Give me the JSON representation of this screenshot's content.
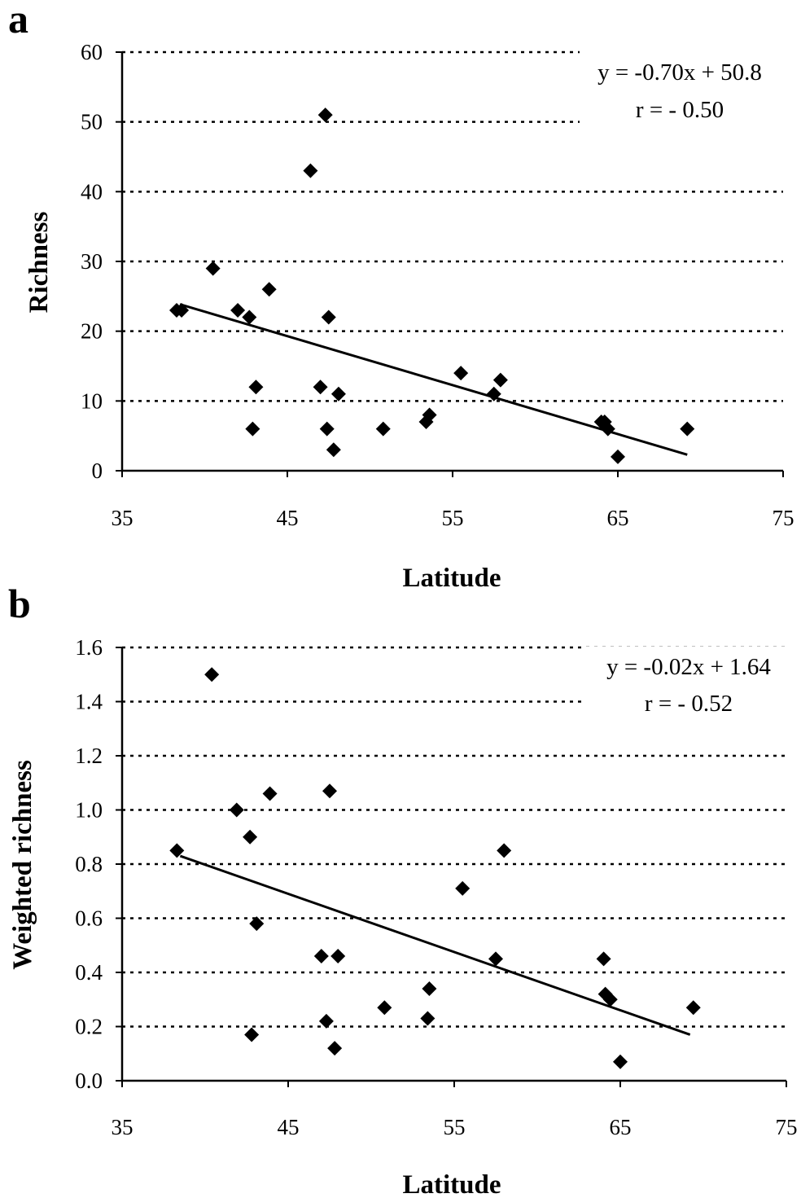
{
  "chart_data": [
    {
      "panel_label": "a",
      "type": "scatter",
      "xlabel": "Latitude",
      "ylabel": "Richness",
      "xlim": [
        35,
        75
      ],
      "ylim": [
        0,
        60
      ],
      "x_ticks": [
        "35",
        "45",
        "55",
        "65",
        "75"
      ],
      "y_ticks": [
        "0",
        "10",
        "20",
        "30",
        "40",
        "50",
        "60"
      ],
      "grid": "horizontal dotted",
      "annotation": [
        "y = -0.70x + 50.8",
        "r = - 0.50"
      ],
      "trendline": {
        "x": [
          38.5,
          69.2
        ],
        "y": [
          23.85,
          2.3
        ]
      },
      "points": [
        {
          "x": 38.3,
          "y": 23
        },
        {
          "x": 38.6,
          "y": 23
        },
        {
          "x": 40.5,
          "y": 29
        },
        {
          "x": 42.0,
          "y": 23
        },
        {
          "x": 42.7,
          "y": 22
        },
        {
          "x": 42.9,
          "y": 6
        },
        {
          "x": 43.1,
          "y": 12
        },
        {
          "x": 43.9,
          "y": 26
        },
        {
          "x": 46.4,
          "y": 43
        },
        {
          "x": 47.0,
          "y": 12
        },
        {
          "x": 47.3,
          "y": 51
        },
        {
          "x": 47.4,
          "y": 6
        },
        {
          "x": 47.5,
          "y": 22
        },
        {
          "x": 47.8,
          "y": 3
        },
        {
          "x": 48.1,
          "y": 11
        },
        {
          "x": 50.8,
          "y": 6
        },
        {
          "x": 53.4,
          "y": 7
        },
        {
          "x": 53.6,
          "y": 8
        },
        {
          "x": 55.5,
          "y": 14
        },
        {
          "x": 57.5,
          "y": 11
        },
        {
          "x": 57.9,
          "y": 13
        },
        {
          "x": 64.0,
          "y": 7
        },
        {
          "x": 64.2,
          "y": 7
        },
        {
          "x": 64.4,
          "y": 6
        },
        {
          "x": 65.0,
          "y": 2
        },
        {
          "x": 69.2,
          "y": 6
        }
      ]
    },
    {
      "panel_label": "b",
      "type": "scatter",
      "xlabel": "Latitude",
      "ylabel": "Weighted richness",
      "xlim": [
        35,
        75
      ],
      "ylim": [
        0,
        1.6
      ],
      "x_ticks": [
        "35",
        "45",
        "55",
        "65",
        "75"
      ],
      "y_ticks": [
        "0.0",
        "0.2",
        "0.4",
        "0.6",
        "0.8",
        "1.0",
        "1.2",
        "1.4",
        "1.6"
      ],
      "grid": "horizontal dotted",
      "annotation": [
        "y = -0.02x + 1.64",
        "r = - 0.52"
      ],
      "trendline": {
        "x": [
          38.5,
          69.2
        ],
        "y": [
          0.83,
          0.17
        ]
      },
      "points": [
        {
          "x": 38.3,
          "y": 0.85
        },
        {
          "x": 40.4,
          "y": 1.5
        },
        {
          "x": 41.9,
          "y": 1.0
        },
        {
          "x": 42.7,
          "y": 0.9
        },
        {
          "x": 42.8,
          "y": 0.17
        },
        {
          "x": 43.1,
          "y": 0.58
        },
        {
          "x": 43.9,
          "y": 1.06
        },
        {
          "x": 47.0,
          "y": 0.46
        },
        {
          "x": 47.3,
          "y": 0.22
        },
        {
          "x": 47.5,
          "y": 1.07
        },
        {
          "x": 47.8,
          "y": 0.12
        },
        {
          "x": 48.0,
          "y": 0.46
        },
        {
          "x": 50.8,
          "y": 0.27
        },
        {
          "x": 53.4,
          "y": 0.23
        },
        {
          "x": 53.5,
          "y": 0.34
        },
        {
          "x": 55.5,
          "y": 0.71
        },
        {
          "x": 57.5,
          "y": 0.45
        },
        {
          "x": 58.0,
          "y": 0.85
        },
        {
          "x": 64.0,
          "y": 0.45
        },
        {
          "x": 64.1,
          "y": 0.32
        },
        {
          "x": 64.4,
          "y": 0.3
        },
        {
          "x": 65.0,
          "y": 0.07
        },
        {
          "x": 69.4,
          "y": 0.27
        }
      ]
    }
  ]
}
